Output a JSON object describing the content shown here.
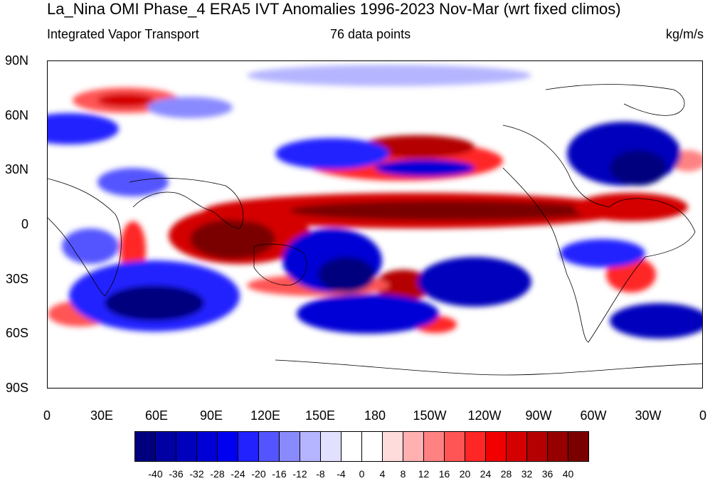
{
  "title": "La_Nina OMI Phase_4 ERA5 IVT Anomalies 1996-2023 Nov-Mar (wrt fixed climos)",
  "subtitle_left": "Integrated Vapor Transport",
  "subtitle_center": "76 data points",
  "subtitle_right": "kg/m/s",
  "lat_ticks": [
    "90N",
    "60N",
    "30N",
    "0",
    "30S",
    "60S",
    "90S"
  ],
  "lon_ticks": [
    "0",
    "30E",
    "60E",
    "90E",
    "120E",
    "150E",
    "180",
    "150W",
    "120W",
    "90W",
    "60W",
    "30W",
    "0"
  ],
  "colorbar": {
    "labels": [
      "-40",
      "-36",
      "-32",
      "-28",
      "-24",
      "-20",
      "-16",
      "-12",
      "-8",
      "-4",
      "0",
      "4",
      "8",
      "12",
      "16",
      "20",
      "24",
      "28",
      "32",
      "36",
      "40"
    ],
    "colors": [
      "#00007f",
      "#0000a3",
      "#0000bd",
      "#0000d6",
      "#0000f0",
      "#2222ff",
      "#5555ff",
      "#8a8aff",
      "#b5b5ff",
      "#e1e1ff",
      "#ffffff",
      "#ffffff",
      "#ffdcdc",
      "#ffb0b0",
      "#ff8282",
      "#ff5555",
      "#ff2626",
      "#f20000",
      "#d40000",
      "#b40000",
      "#960000",
      "#7a0000"
    ]
  }
}
